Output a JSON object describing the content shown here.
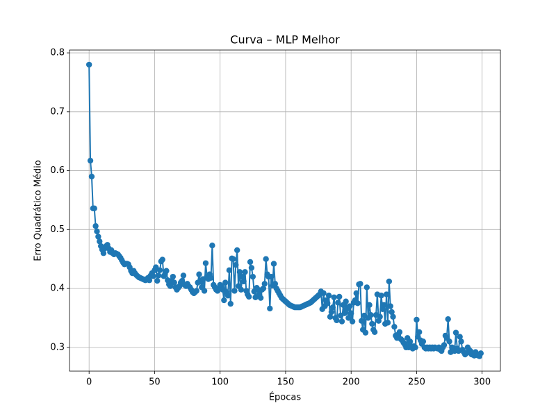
{
  "chart_data": {
    "type": "line",
    "title": "Curva – MLP Melhor",
    "x_label": "Épocas",
    "y_label": "Erro Quadrático Médio",
    "x": [
      0,
      1,
      2,
      3,
      4,
      5,
      6,
      7,
      8,
      9,
      10,
      11,
      12,
      13,
      14,
      15,
      16,
      17,
      18,
      19,
      20,
      21,
      22,
      23,
      24,
      25,
      26,
      27,
      28,
      29,
      30,
      31,
      32,
      33,
      34,
      35,
      36,
      37,
      38,
      39,
      40,
      41,
      42,
      43,
      44,
      45,
      46,
      47,
      48,
      49,
      50,
      51,
      52,
      53,
      54,
      55,
      56,
      57,
      58,
      59,
      60,
      61,
      62,
      63,
      64,
      65,
      66,
      67,
      68,
      69,
      70,
      71,
      72,
      73,
      74,
      75,
      76,
      77,
      78,
      79,
      80,
      81,
      82,
      83,
      84,
      85,
      86,
      87,
      88,
      89,
      90,
      91,
      92,
      93,
      94,
      95,
      96,
      97,
      98,
      99,
      100,
      101,
      102,
      103,
      104,
      105,
      106,
      107,
      108,
      109,
      110,
      111,
      112,
      113,
      114,
      115,
      116,
      117,
      118,
      119,
      120,
      121,
      122,
      123,
      124,
      125,
      126,
      127,
      128,
      129,
      130,
      131,
      132,
      133,
      134,
      135,
      136,
      137,
      138,
      139,
      140,
      141,
      142,
      143,
      144,
      145,
      146,
      147,
      148,
      149,
      150,
      151,
      152,
      153,
      154,
      155,
      156,
      157,
      158,
      159,
      160,
      161,
      162,
      163,
      164,
      165,
      166,
      167,
      168,
      169,
      170,
      171,
      172,
      173,
      174,
      175,
      176,
      177,
      178,
      179,
      180,
      181,
      182,
      183,
      184,
      185,
      186,
      187,
      188,
      189,
      190,
      191,
      192,
      193,
      194,
      195,
      196,
      197,
      198,
      199,
      200,
      201,
      202,
      203,
      204,
      205,
      206,
      207,
      208,
      209,
      210,
      211,
      212,
      213,
      214,
      215,
      216,
      217,
      218,
      219,
      220,
      221,
      222,
      223,
      224,
      225,
      226,
      227,
      228,
      229,
      230,
      231,
      232,
      233,
      234,
      235,
      236,
      237,
      238,
      239,
      240,
      241,
      242,
      243,
      244,
      245,
      246,
      247,
      248,
      249,
      250,
      251,
      252,
      253,
      254,
      255,
      256,
      257,
      258,
      259,
      260,
      261,
      262,
      263,
      264,
      265,
      266,
      267,
      268,
      269,
      270,
      271,
      272,
      273,
      274,
      275,
      276,
      277,
      278,
      279,
      280,
      281,
      282,
      283,
      284,
      285,
      286,
      287,
      288,
      289,
      290,
      291,
      292,
      293,
      294,
      295,
      296,
      297,
      298,
      299
    ],
    "series": [
      {
        "color": "#1f77b4",
        "values": [
          0.78,
          0.617,
          0.59,
          0.536,
          0.536,
          0.506,
          0.497,
          0.488,
          0.48,
          0.472,
          0.466,
          0.46,
          0.468,
          0.472,
          0.474,
          0.468,
          0.462,
          0.465,
          0.46,
          0.458,
          0.46,
          0.459,
          0.458,
          0.455,
          0.452,
          0.448,
          0.444,
          0.441,
          0.442,
          0.442,
          0.441,
          0.436,
          0.43,
          0.426,
          0.43,
          0.426,
          0.423,
          0.421,
          0.419,
          0.418,
          0.417,
          0.416,
          0.415,
          0.414,
          0.416,
          0.418,
          0.414,
          0.422,
          0.426,
          0.421,
          0.431,
          0.436,
          0.413,
          0.422,
          0.431,
          0.446,
          0.449,
          0.421,
          0.425,
          0.43,
          0.414,
          0.407,
          0.404,
          0.413,
          0.42,
          0.41,
          0.402,
          0.398,
          0.401,
          0.404,
          0.41,
          0.413,
          0.422,
          0.406,
          0.404,
          0.408,
          0.404,
          0.402,
          0.398,
          0.394,
          0.392,
          0.394,
          0.396,
          0.41,
          0.424,
          0.412,
          0.402,
          0.416,
          0.396,
          0.443,
          0.42,
          0.416,
          0.424,
          0.418,
          0.473,
          0.406,
          0.402,
          0.398,
          0.396,
          0.4,
          0.406,
          0.404,
          0.398,
          0.38,
          0.41,
          0.394,
          0.388,
          0.431,
          0.374,
          0.451,
          0.45,
          0.396,
          0.44,
          0.465,
          0.404,
          0.428,
          0.398,
          0.42,
          0.412,
          0.428,
          0.396,
          0.39,
          0.386,
          0.445,
          0.435,
          0.42,
          0.395,
          0.385,
          0.401,
          0.398,
          0.39,
          0.384,
          0.398,
          0.4,
          0.408,
          0.45,
          0.424,
          0.42,
          0.366,
          0.42,
          0.405,
          0.442,
          0.408,
          0.4,
          0.396,
          0.392,
          0.388,
          0.384,
          0.382,
          0.38,
          0.378,
          0.376,
          0.374,
          0.372,
          0.371,
          0.37,
          0.369,
          0.368,
          0.368,
          0.368,
          0.368,
          0.368,
          0.369,
          0.37,
          0.371,
          0.372,
          0.373,
          0.374,
          0.375,
          0.376,
          0.378,
          0.38,
          0.382,
          0.384,
          0.386,
          0.388,
          0.39,
          0.395,
          0.365,
          0.392,
          0.37,
          0.38,
          0.375,
          0.388,
          0.352,
          0.36,
          0.368,
          0.385,
          0.35,
          0.346,
          0.376,
          0.386,
          0.354,
          0.344,
          0.372,
          0.358,
          0.378,
          0.366,
          0.35,
          0.37,
          0.358,
          0.344,
          0.376,
          0.38,
          0.392,
          0.375,
          0.407,
          0.408,
          0.345,
          0.33,
          0.354,
          0.325,
          0.402,
          0.35,
          0.372,
          0.355,
          0.34,
          0.33,
          0.326,
          0.355,
          0.39,
          0.345,
          0.352,
          0.388,
          0.365,
          0.372,
          0.34,
          0.39,
          0.342,
          0.412,
          0.37,
          0.36,
          0.352,
          0.335,
          0.32,
          0.316,
          0.322,
          0.326,
          0.314,
          0.312,
          0.308,
          0.305,
          0.3,
          0.316,
          0.3,
          0.31,
          0.302,
          0.298,
          0.302,
          0.3,
          0.347,
          0.318,
          0.326,
          0.312,
          0.306,
          0.31,
          0.3,
          0.298,
          0.3,
          0.298,
          0.3,
          0.298,
          0.3,
          0.298,
          0.3,
          0.299,
          0.298,
          0.3,
          0.296,
          0.294,
          0.3,
          0.304,
          0.32,
          0.316,
          0.348,
          0.31,
          0.292,
          0.3,
          0.296,
          0.294,
          0.325,
          0.298,
          0.294,
          0.318,
          0.31,
          0.296,
          0.292,
          0.288,
          0.29,
          0.3,
          0.296,
          0.294,
          0.288,
          0.29,
          0.286,
          0.292,
          0.288,
          0.286,
          0.285,
          0.29
        ]
      }
    ],
    "xlim": [
      -14.95,
      313.95
    ],
    "ylim": [
      0.2597,
      0.8048
    ],
    "xticks": [
      0,
      50,
      100,
      150,
      200,
      250,
      300
    ],
    "yticks": [
      0.3,
      0.4,
      0.5,
      0.6,
      0.7,
      0.8
    ],
    "grid": true
  }
}
